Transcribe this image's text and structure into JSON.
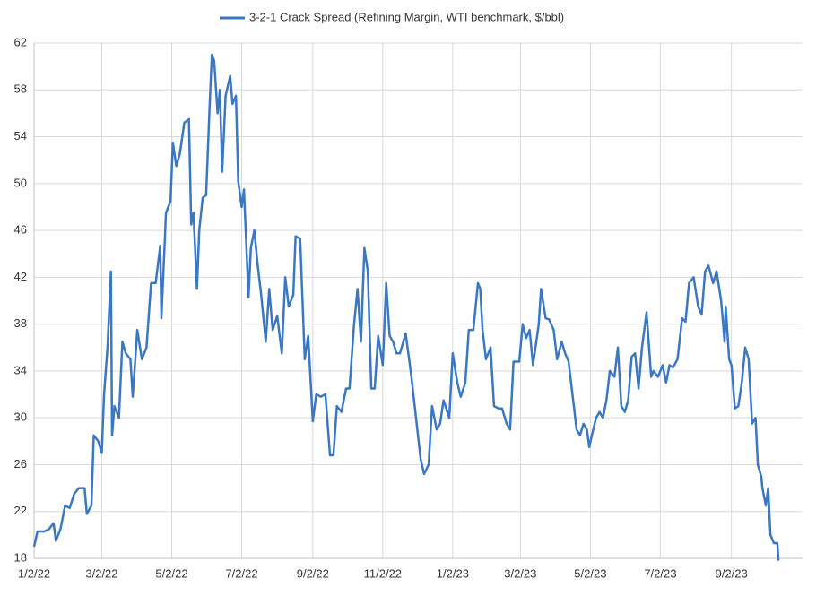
{
  "chart_data": {
    "type": "line",
    "x": [
      "2022-01-02",
      "2022-01-05",
      "2022-01-11",
      "2022-01-15",
      "2022-01-19",
      "2022-01-21",
      "2022-01-25",
      "2022-01-29",
      "2022-02-02",
      "2022-02-06",
      "2022-02-10",
      "2022-02-15",
      "2022-02-17",
      "2022-02-21",
      "2022-02-23",
      "2022-02-27",
      "2022-03-02",
      "2022-03-04",
      "2022-03-07",
      "2022-03-10",
      "2022-03-11",
      "2022-03-13",
      "2022-03-17",
      "2022-03-20",
      "2022-03-23",
      "2022-03-27",
      "2022-03-29",
      "2022-04-02",
      "2022-04-06",
      "2022-04-10",
      "2022-04-14",
      "2022-04-18",
      "2022-04-22",
      "2022-04-23",
      "2022-04-27",
      "2022-05-01",
      "2022-05-03",
      "2022-05-06",
      "2022-05-09",
      "2022-05-13",
      "2022-05-17",
      "2022-05-19",
      "2022-05-21",
      "2022-05-24",
      "2022-05-26",
      "2022-05-29",
      "2022-06-01",
      "2022-06-04",
      "2022-06-06",
      "2022-06-08",
      "2022-06-11",
      "2022-06-13",
      "2022-06-15",
      "2022-06-18",
      "2022-06-22",
      "2022-06-24",
      "2022-06-27",
      "2022-06-29",
      "2022-07-02",
      "2022-07-04",
      "2022-07-08",
      "2022-07-10",
      "2022-07-13",
      "2022-07-16",
      "2022-07-19",
      "2022-07-23",
      "2022-07-26",
      "2022-07-29",
      "2022-08-02",
      "2022-08-06",
      "2022-08-09",
      "2022-08-12",
      "2022-08-16",
      "2022-08-18",
      "2022-08-22",
      "2022-08-26",
      "2022-08-29",
      "2022-09-02",
      "2022-09-05",
      "2022-09-09",
      "2022-09-13",
      "2022-09-17",
      "2022-09-20",
      "2022-09-23",
      "2022-09-27",
      "2022-10-01",
      "2022-10-04",
      "2022-10-08",
      "2022-10-11",
      "2022-10-14",
      "2022-10-17",
      "2022-10-20",
      "2022-10-23",
      "2022-10-26",
      "2022-10-29",
      "2022-11-02",
      "2022-11-05",
      "2022-11-08",
      "2022-11-11",
      "2022-11-14",
      "2022-11-17",
      "2022-11-22",
      "2022-11-27",
      "2022-12-01",
      "2022-12-05",
      "2022-12-08",
      "2022-12-12",
      "2022-12-15",
      "2022-12-19",
      "2022-12-22",
      "2022-12-25",
      "2022-12-30",
      "2023-01-02",
      "2023-01-06",
      "2023-01-09",
      "2023-01-13",
      "2023-01-16",
      "2023-01-20",
      "2023-01-24",
      "2023-01-26",
      "2023-01-28",
      "2023-01-31",
      "2023-02-04",
      "2023-02-07",
      "2023-02-11",
      "2023-02-14",
      "2023-02-18",
      "2023-02-21",
      "2023-02-24",
      "2023-03-01",
      "2023-03-04",
      "2023-03-07",
      "2023-03-10",
      "2023-03-13",
      "2023-03-18",
      "2023-03-20",
      "2023-03-24",
      "2023-03-27",
      "2023-03-31",
      "2023-04-03",
      "2023-04-07",
      "2023-04-10",
      "2023-04-13",
      "2023-04-17",
      "2023-04-20",
      "2023-04-23",
      "2023-04-26",
      "2023-04-29",
      "2023-05-01",
      "2023-05-04",
      "2023-05-07",
      "2023-05-10",
      "2023-05-13",
      "2023-05-16",
      "2023-05-19",
      "2023-05-23",
      "2023-05-26",
      "2023-05-29",
      "2023-06-01",
      "2023-06-04",
      "2023-06-07",
      "2023-06-10",
      "2023-06-13",
      "2023-06-16",
      "2023-06-20",
      "2023-06-24",
      "2023-06-26",
      "2023-06-30",
      "2023-07-04",
      "2023-07-07",
      "2023-07-10",
      "2023-07-13",
      "2023-07-17",
      "2023-07-21",
      "2023-07-24",
      "2023-07-27",
      "2023-07-31",
      "2023-08-04",
      "2023-08-07",
      "2023-08-10",
      "2023-08-13",
      "2023-08-17",
      "2023-08-20",
      "2023-08-24",
      "2023-08-27",
      "2023-08-28",
      "2023-08-31",
      "2023-09-02",
      "2023-09-05",
      "2023-09-08",
      "2023-09-11",
      "2023-09-14",
      "2023-09-17",
      "2023-09-20",
      "2023-09-23",
      "2023-09-25",
      "2023-09-28",
      "2023-09-29",
      "2023-10-02",
      "2023-10-04",
      "2023-10-06",
      "2023-10-09",
      "2023-10-12",
      "2023-10-13"
    ],
    "series": [
      {
        "name": "3-2-1 Crack Spread (Refining Margin, WTI benchmark, $/bbl)",
        "color": "#3a78c4",
        "values": [
          19,
          20.3,
          20.3,
          20.5,
          21,
          19.5,
          20.5,
          22.5,
          22.3,
          23.5,
          24,
          24,
          21.8,
          22.5,
          28.5,
          28,
          27,
          32,
          36,
          42.5,
          28.5,
          31,
          30,
          36.5,
          35.5,
          35,
          31.8,
          37.5,
          35,
          36,
          41.5,
          41.5,
          44.7,
          38.5,
          47.5,
          48.5,
          53.5,
          51.5,
          52.5,
          55.2,
          55.5,
          46.5,
          47.5,
          41,
          46,
          48.8,
          49,
          56.5,
          61,
          60.5,
          56,
          58,
          51,
          57.5,
          59.2,
          56.8,
          57.5,
          50.2,
          48,
          49.5,
          40.3,
          44.5,
          46,
          43,
          40.5,
          36.5,
          41,
          37.5,
          38.7,
          35.5,
          42,
          39.5,
          40.5,
          45.5,
          45.3,
          35,
          37,
          29.7,
          32,
          31.8,
          32,
          26.8,
          26.8,
          31,
          30.5,
          32.5,
          32.5,
          38,
          41,
          36.5,
          44.5,
          42.5,
          32.5,
          32.5,
          37,
          34.5,
          41.5,
          37,
          36.5,
          35.5,
          35.5,
          37.2,
          33.5,
          30,
          26.5,
          25.2,
          26,
          31,
          29,
          29.5,
          31.5,
          30,
          35.5,
          33,
          31.8,
          33,
          37.5,
          37.5,
          41.5,
          41,
          37.5,
          35,
          36,
          31,
          30.8,
          30.8,
          29.5,
          29,
          34.8,
          34.8,
          38,
          36.8,
          37.5,
          34.5,
          38,
          41,
          38.5,
          38.4,
          37.5,
          35,
          36.5,
          35.5,
          34.8,
          31.5,
          29,
          28.5,
          29.5,
          29,
          27.5,
          28.8,
          30,
          30.5,
          30,
          31.5,
          34,
          33.5,
          36,
          31,
          30.5,
          31.5,
          35.2,
          35.5,
          32.5,
          36,
          39,
          33.5,
          34,
          33.5,
          34.5,
          33,
          34.5,
          34.3,
          35,
          38.5,
          38.2,
          41.5,
          42,
          39.5,
          38.8,
          42.5,
          43,
          41.5,
          42.5,
          40,
          36.5,
          39.5,
          35,
          34.5,
          30.8,
          31,
          33,
          36,
          35,
          29.5,
          30,
          26,
          25,
          24,
          22.5,
          24,
          20,
          19.3,
          19.3,
          17.8
        ]
      }
    ],
    "xlim": [
      "2022-01-02",
      "2023-11-03"
    ],
    "xticks": [
      {
        "value": "2022-01-02",
        "label": "1/2/22"
      },
      {
        "value": "2022-03-02",
        "label": "3/2/22"
      },
      {
        "value": "2022-05-02",
        "label": "5/2/22"
      },
      {
        "value": "2022-07-02",
        "label": "7/2/22"
      },
      {
        "value": "2022-09-02",
        "label": "9/2/22"
      },
      {
        "value": "2022-11-02",
        "label": "11/2/22"
      },
      {
        "value": "2023-01-02",
        "label": "1/2/23"
      },
      {
        "value": "2023-03-02",
        "label": "3/2/23"
      },
      {
        "value": "2023-05-02",
        "label": "5/2/23"
      },
      {
        "value": "2023-07-02",
        "label": "7/2/23"
      },
      {
        "value": "2023-09-02",
        "label": "9/2/23"
      }
    ],
    "ylim": [
      18,
      62
    ],
    "yticks": [
      18,
      22,
      26,
      30,
      34,
      38,
      42,
      46,
      50,
      54,
      58,
      62
    ],
    "grid": true,
    "legend": "top"
  }
}
